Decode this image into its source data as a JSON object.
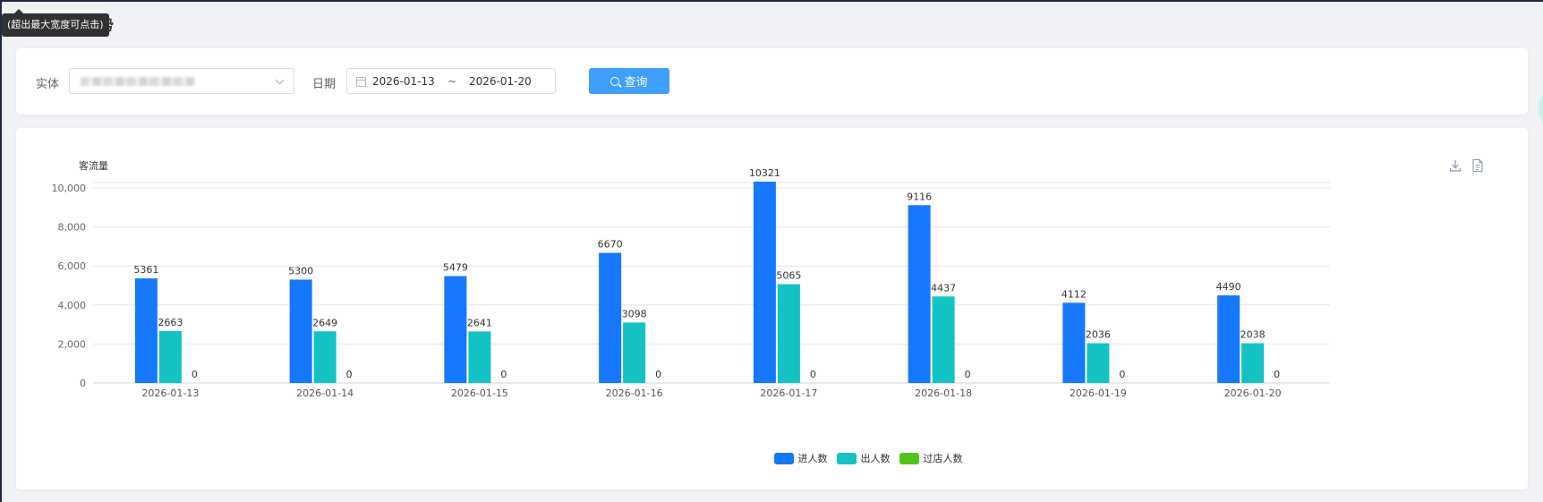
{
  "page": {
    "title_fragment": "势",
    "tooltip": "(超出最大宽度可点击)"
  },
  "filter": {
    "entity_label": "实体",
    "date_label": "日期",
    "date_start": "2026-01-13",
    "date_sep": "~",
    "date_end": "2026-01-20",
    "query_label": "查询"
  },
  "colors": {
    "in": "#1677ff",
    "out": "#13c2c2",
    "pass": "#52c41a"
  },
  "icons": [
    "search-icon",
    "calendar-icon",
    "chevron-down-icon",
    "download-icon",
    "document-icon"
  ],
  "chart_data": {
    "type": "bar",
    "title": "",
    "xlabel": "",
    "ylabel": "客流量",
    "ylim": [
      0,
      10000
    ],
    "yticks": [
      "0",
      "2,000",
      "4,000",
      "6,000",
      "8,000",
      "10,000"
    ],
    "grid": true,
    "legend_position": "bottom",
    "categories": [
      "2026-01-13",
      "2026-01-14",
      "2026-01-15",
      "2026-01-16",
      "2026-01-17",
      "2026-01-18",
      "2026-01-19",
      "2026-01-20"
    ],
    "series": [
      {
        "name": "进人数",
        "values": [
          5361,
          5300,
          5479,
          6670,
          10321,
          9116,
          4112,
          4490
        ]
      },
      {
        "name": "出人数",
        "values": [
          2663,
          2649,
          2641,
          3098,
          5065,
          4437,
          2036,
          2038
        ]
      },
      {
        "name": "过店人数",
        "values": [
          0,
          0,
          0,
          0,
          0,
          0,
          0,
          0
        ]
      }
    ]
  }
}
